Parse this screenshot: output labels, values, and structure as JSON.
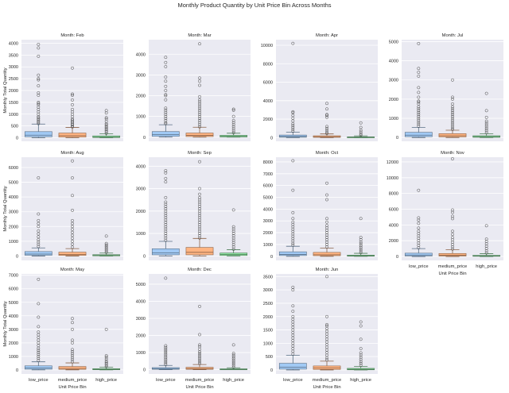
{
  "chart_data": {
    "type": "box",
    "title": "Monthly Product Quantity by Unit Price Bin Across Months",
    "ylabel": "Monthly Total Quantity",
    "xlabel": "Unit Price Bin",
    "categories": [
      "low_price",
      "medium_price",
      "high_price"
    ],
    "colors": [
      "#a1c9f4",
      "#ffb482",
      "#8de5a1"
    ],
    "grid": true,
    "panels": [
      {
        "title": "Month: Feb",
        "ylim": [
          -150,
          4150
        ],
        "yticks": [
          0,
          500,
          1000,
          1500,
          2000,
          2500,
          3000,
          3500,
          4000
        ],
        "boxes": [
          {
            "q1": 40,
            "median": 110,
            "q3": 260,
            "whislo": 0,
            "whishi": 580,
            "fliers": [
              600,
              650,
              700,
              750,
              800,
              850,
              900,
              1000,
              1100,
              1200,
              1300,
              1400,
              1450,
              1500,
              1800,
              1900,
              2200,
              2450,
              2500,
              2650,
              3450,
              3800,
              3950
            ]
          },
          {
            "q1": 30,
            "median": 90,
            "q3": 200,
            "whislo": 0,
            "whishi": 440,
            "fliers": [
              460,
              500,
              550,
              600,
              650,
              700,
              750,
              800,
              900,
              1000,
              1100,
              1200,
              1400,
              1600,
              1800,
              1850,
              2950
            ]
          },
          {
            "q1": 10,
            "median": 40,
            "q3": 80,
            "whislo": 0,
            "whishi": 170,
            "fliers": [
              190,
              250,
              300,
              350,
              400,
              450,
              500,
              550,
              600,
              700,
              800,
              850,
              1050,
              1150
            ]
          }
        ]
      },
      {
        "title": "Month: Mar",
        "ylim": [
          -200,
          4700
        ],
        "yticks": [
          0,
          1000,
          2000,
          3000,
          4000
        ],
        "boxes": [
          {
            "q1": 40,
            "median": 120,
            "q3": 270,
            "whislo": 0,
            "whishi": 600,
            "fliers": [
              650,
              700,
              800,
              900,
              1000,
              1100,
              1200,
              1300,
              1400,
              1800,
              2000,
              2050,
              2250,
              2450,
              2700,
              2900,
              3400,
              3600,
              3850
            ]
          },
          {
            "q1": 30,
            "median": 90,
            "q3": 200,
            "whislo": 0,
            "whishi": 480,
            "fliers": [
              500,
              600,
              700,
              800,
              900,
              1000,
              1100,
              1200,
              1300,
              1400,
              1500,
              1600,
              1700,
              1800,
              1950,
              2500,
              2700,
              2850,
              4500
            ]
          },
          {
            "q1": 10,
            "median": 40,
            "q3": 90,
            "whislo": 0,
            "whishi": 190,
            "fliers": [
              210,
              300,
              400,
              500,
              600,
              700,
              800,
              1000,
              1300,
              1350
            ]
          }
        ]
      },
      {
        "title": "Month: Apr",
        "ylim": [
          -400,
          10600
        ],
        "yticks": [
          0,
          2000,
          4000,
          6000,
          8000,
          10000
        ],
        "boxes": [
          {
            "q1": 40,
            "median": 120,
            "q3": 280,
            "whislo": 0,
            "whishi": 600,
            "fliers": [
              700,
              900,
              1100,
              1300,
              1500,
              1800,
              2100,
              2400,
              2700,
              2800,
              10200
            ]
          },
          {
            "q1": 30,
            "median": 90,
            "q3": 200,
            "whislo": 0,
            "whishi": 400,
            "fliers": [
              450,
              600,
              800,
              1000,
              1200,
              2200,
              2400,
              2500,
              3100,
              3700
            ]
          },
          {
            "q1": 10,
            "median": 40,
            "q3": 90,
            "whislo": 0,
            "whishi": 190,
            "fliers": [
              250,
              400,
              600,
              800,
              1100,
              1600
            ]
          }
        ]
      },
      {
        "title": "Month: Jul",
        "ylim": [
          -200,
          5100
        ],
        "yticks": [
          0,
          1000,
          2000,
          3000,
          4000,
          5000
        ],
        "boxes": [
          {
            "q1": 40,
            "median": 120,
            "q3": 270,
            "whislo": 0,
            "whishi": 520,
            "fliers": [
              600,
              700,
              800,
              900,
              1000,
              1100,
              1200,
              1300,
              1400,
              1500,
              1600,
              1750,
              1850,
              1900,
              2100,
              2350,
              2600,
              3200,
              3400,
              3600,
              4900
            ]
          },
          {
            "q1": 30,
            "median": 90,
            "q3": 200,
            "whislo": 0,
            "whishi": 380,
            "fliers": [
              420,
              500,
              600,
              700,
              800,
              900,
              1000,
              1100,
              1200,
              1300,
              1400,
              1500,
              1600,
              1750,
              2000,
              2100,
              3000
            ]
          },
          {
            "q1": 10,
            "median": 40,
            "q3": 90,
            "whislo": 0,
            "whishi": 200,
            "fliers": [
              250,
              350,
              450,
              550,
              650,
              750,
              850,
              1050,
              1400,
              2300
            ]
          }
        ]
      },
      {
        "title": "Month: Aug",
        "ylim": [
          -300,
          6700
        ],
        "yticks": [
          0,
          1000,
          2000,
          3000,
          4000,
          5000,
          6000
        ],
        "boxes": [
          {
            "q1": 50,
            "median": 130,
            "q3": 300,
            "whislo": 0,
            "whishi": 550,
            "fliers": [
              650,
              800,
              950,
              1100,
              1300,
              1500,
              1700,
              2000,
              2200,
              2400,
              2850,
              5300
            ]
          },
          {
            "q1": 40,
            "median": 110,
            "q3": 260,
            "whislo": 0,
            "whishi": 500,
            "fliers": [
              600,
              800,
              1000,
              1200,
              1400,
              1600,
              1800,
              2000,
              2200,
              2400,
              3100,
              4100,
              5300,
              6450
            ]
          },
          {
            "q1": 10,
            "median": 40,
            "q3": 90,
            "whislo": 0,
            "whishi": 200,
            "fliers": [
              250,
              350,
              450,
              550,
              650,
              750,
              850,
              1350
            ]
          }
        ]
      },
      {
        "title": "Month: Sep",
        "ylim": [
          -200,
          4400
        ],
        "yticks": [
          0,
          1000,
          2000,
          3000,
          4000
        ],
        "boxes": [
          {
            "q1": 50,
            "median": 140,
            "q3": 320,
            "whislo": 0,
            "whishi": 650,
            "fliers": [
              700,
              800,
              900,
              1000,
              1100,
              1200,
              1300,
              1400,
              1500,
              1600,
              1700,
              1800,
              1900,
              2000,
              2100,
              2200,
              2300,
              2400,
              2600,
              3300,
              3450,
              3700,
              3800
            ]
          },
          {
            "q1": 50,
            "median": 160,
            "q3": 380,
            "whislo": 0,
            "whishi": 780,
            "fliers": [
              800,
              900,
              1000,
              1100,
              1200,
              1300,
              1400,
              1500,
              1600,
              1700,
              1800,
              1900,
              2000,
              2100,
              2200,
              2300,
              2400,
              2500,
              2600,
              2750,
              3000,
              4200
            ]
          },
          {
            "q1": 20,
            "median": 60,
            "q3": 130,
            "whislo": 0,
            "whishi": 280,
            "fliers": [
              300,
              400,
              500,
              600,
              700,
              800,
              900,
              1000,
              1100,
              1200,
              1300,
              2050
            ]
          }
        ]
      },
      {
        "title": "Month: Oct",
        "ylim": [
          -350,
          8400
        ],
        "yticks": [
          0,
          1000,
          2000,
          3000,
          4000,
          5000,
          6000,
          7000,
          8000
        ],
        "boxes": [
          {
            "q1": 60,
            "median": 150,
            "q3": 380,
            "whislo": 0,
            "whishi": 850,
            "fliers": [
              950,
              1100,
              1300,
              1500,
              1700,
              1900,
              2100,
              2300,
              2500,
              2700,
              2900,
              3200,
              3700,
              5600,
              8100
            ]
          },
          {
            "q1": 50,
            "median": 130,
            "q3": 330,
            "whislo": 0,
            "whishi": 700,
            "fliers": [
              800,
              1000,
              1200,
              1400,
              1600,
              1800,
              2000,
              2200,
              2400,
              2600,
              2900,
              3200,
              4800,
              5200,
              6200
            ]
          },
          {
            "q1": 10,
            "median": 40,
            "q3": 100,
            "whislo": 0,
            "whishi": 250,
            "fliers": [
              300,
              450,
              600,
              750,
              900,
              1050,
              1200,
              1400,
              1600,
              3200
            ]
          }
        ]
      },
      {
        "title": "Month: Nov",
        "ylim": [
          -500,
          12600
        ],
        "yticks": [
          0,
          2000,
          4000,
          6000,
          8000,
          10000,
          12000
        ],
        "boxes": [
          {
            "q1": 60,
            "median": 180,
            "q3": 420,
            "whislo": 0,
            "whishi": 1000,
            "fliers": [
              1100,
              1400,
              1700,
              2000,
              2300,
              2600,
              2900,
              3200,
              3600,
              4200,
              4600,
              4900,
              8400
            ]
          },
          {
            "q1": 50,
            "median": 160,
            "q3": 380,
            "whislo": 0,
            "whishi": 850,
            "fliers": [
              950,
              1200,
              1500,
              1800,
              2100,
              2400,
              2800,
              3200,
              4800,
              5100,
              5600,
              5900,
              12400
            ]
          },
          {
            "q1": 20,
            "median": 60,
            "q3": 150,
            "whislo": 0,
            "whishi": 350,
            "fliers": [
              450,
              700,
              1000,
              1300,
              1600,
              1900,
              2200,
              3900
            ]
          }
        ]
      },
      {
        "title": "Month: May",
        "ylim": [
          -300,
          7100
        ],
        "yticks": [
          0,
          1000,
          2000,
          3000,
          4000,
          5000,
          6000,
          7000
        ],
        "boxes": [
          {
            "q1": 50,
            "median": 140,
            "q3": 300,
            "whislo": 0,
            "whishi": 600,
            "fliers": [
              700,
              850,
              1000,
              1150,
              1300,
              1450,
              1600,
              1800,
              2000,
              2200,
              2400,
              2600,
              2800,
              3200,
              3900,
              4900,
              6700
            ]
          },
          {
            "q1": 40,
            "median": 110,
            "q3": 250,
            "whislo": 0,
            "whishi": 520,
            "fliers": [
              600,
              750,
              900,
              1050,
              1200,
              1350,
              1500,
              2000,
              2200,
              3000,
              3500,
              3800
            ]
          },
          {
            "q1": 10,
            "median": 40,
            "q3": 90,
            "whislo": 0,
            "whishi": 200,
            "fliers": [
              250,
              350,
              450,
              550,
              650,
              800,
              950,
              1050,
              3000
            ]
          }
        ]
      },
      {
        "title": "Month: Dec",
        "ylim": [
          -250,
          5600
        ],
        "yticks": [
          0,
          1000,
          2000,
          3000,
          4000,
          5000
        ],
        "boxes": [
          {
            "q1": 20,
            "median": 60,
            "q3": 120,
            "whislo": 0,
            "whishi": 250,
            "fliers": [
              300,
              400,
              500,
              600,
              700,
              800,
              900,
              1000,
              1100,
              1200,
              1300,
              1400,
              5350
            ]
          },
          {
            "q1": 20,
            "median": 60,
            "q3": 140,
            "whislo": 0,
            "whishi": 300,
            "fliers": [
              350,
              450,
              550,
              650,
              750,
              850,
              950,
              1050,
              1200,
              1350,
              1450,
              2050,
              3700
            ]
          },
          {
            "q1": 5,
            "median": 20,
            "q3": 50,
            "whislo": 0,
            "whishi": 110,
            "fliers": [
              150,
              250,
              350,
              450,
              550,
              650,
              750,
              850,
              950,
              1450
            ]
          }
        ]
      },
      {
        "title": "Month: Jun",
        "ylim": [
          -150,
          3600
        ],
        "yticks": [
          0,
          500,
          1000,
          1500,
          2000,
          2500,
          3000,
          3500
        ],
        "boxes": [
          {
            "q1": 30,
            "median": 100,
            "q3": 250,
            "whislo": 0,
            "whishi": 550,
            "fliers": [
              600,
              700,
              800,
              900,
              1000,
              1100,
              1200,
              1300,
              1400,
              1500,
              1600,
              1700,
              1800,
              1900,
              2000,
              2200,
              2400,
              3000,
              3100
            ]
          },
          {
            "q1": 20,
            "median": 70,
            "q3": 150,
            "whislo": 0,
            "whishi": 330,
            "fliers": [
              380,
              450,
              550,
              650,
              750,
              850,
              950,
              1050,
              1150,
              1250,
              1350,
              1450,
              1550,
              1650,
              1700,
              2000,
              3500
            ]
          },
          {
            "q1": 5,
            "median": 25,
            "q3": 60,
            "whislo": 0,
            "whishi": 130,
            "fliers": [
              180,
              250,
              320,
              400,
              480,
              560,
              640,
              800,
              1150,
              1650,
              1800
            ]
          }
        ]
      }
    ]
  }
}
